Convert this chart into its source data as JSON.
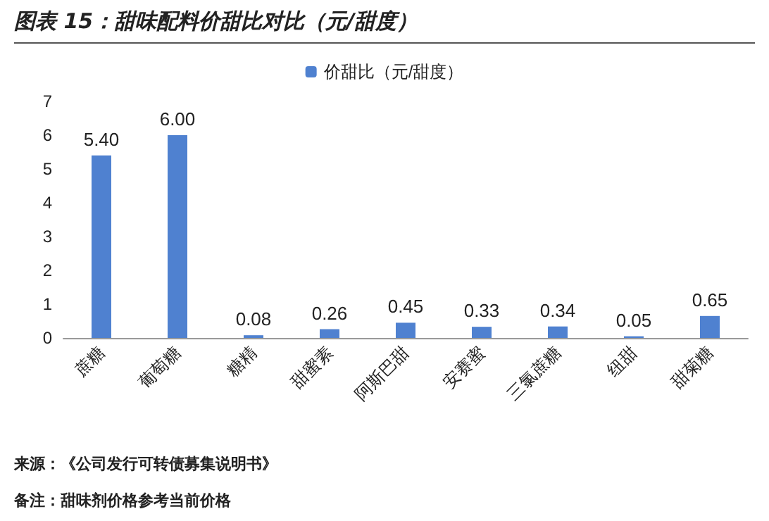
{
  "chart_data": {
    "type": "bar",
    "title": "图表 15：甜味配料价甜比对比（元/甜度）",
    "categories": [
      "蔗糖",
      "葡萄糖",
      "糖精",
      "甜蜜素",
      "阿斯巴甜",
      "安赛蜜",
      "三氯蔗糖",
      "纽甜",
      "甜菊糖"
    ],
    "series": [
      {
        "name": "价甜比（元/甜度）",
        "color": "#4f81d0",
        "values": [
          5.4,
          6.0,
          0.08,
          0.26,
          0.45,
          0.33,
          0.34,
          0.05,
          0.65
        ],
        "value_labels": [
          "5.40",
          "6.00",
          "0.08",
          "0.26",
          "0.45",
          "0.33",
          "0.34",
          "0.05",
          "0.65"
        ]
      }
    ],
    "ylim": [
      0,
      7
    ],
    "yticks": [
      0,
      1,
      2,
      3,
      4,
      5,
      6,
      7
    ],
    "grid": false,
    "legend": "top",
    "annotations": [
      "来源：《公司发行可转债募集说明书》",
      "备注：甜味剂价格参考当前价格"
    ]
  }
}
